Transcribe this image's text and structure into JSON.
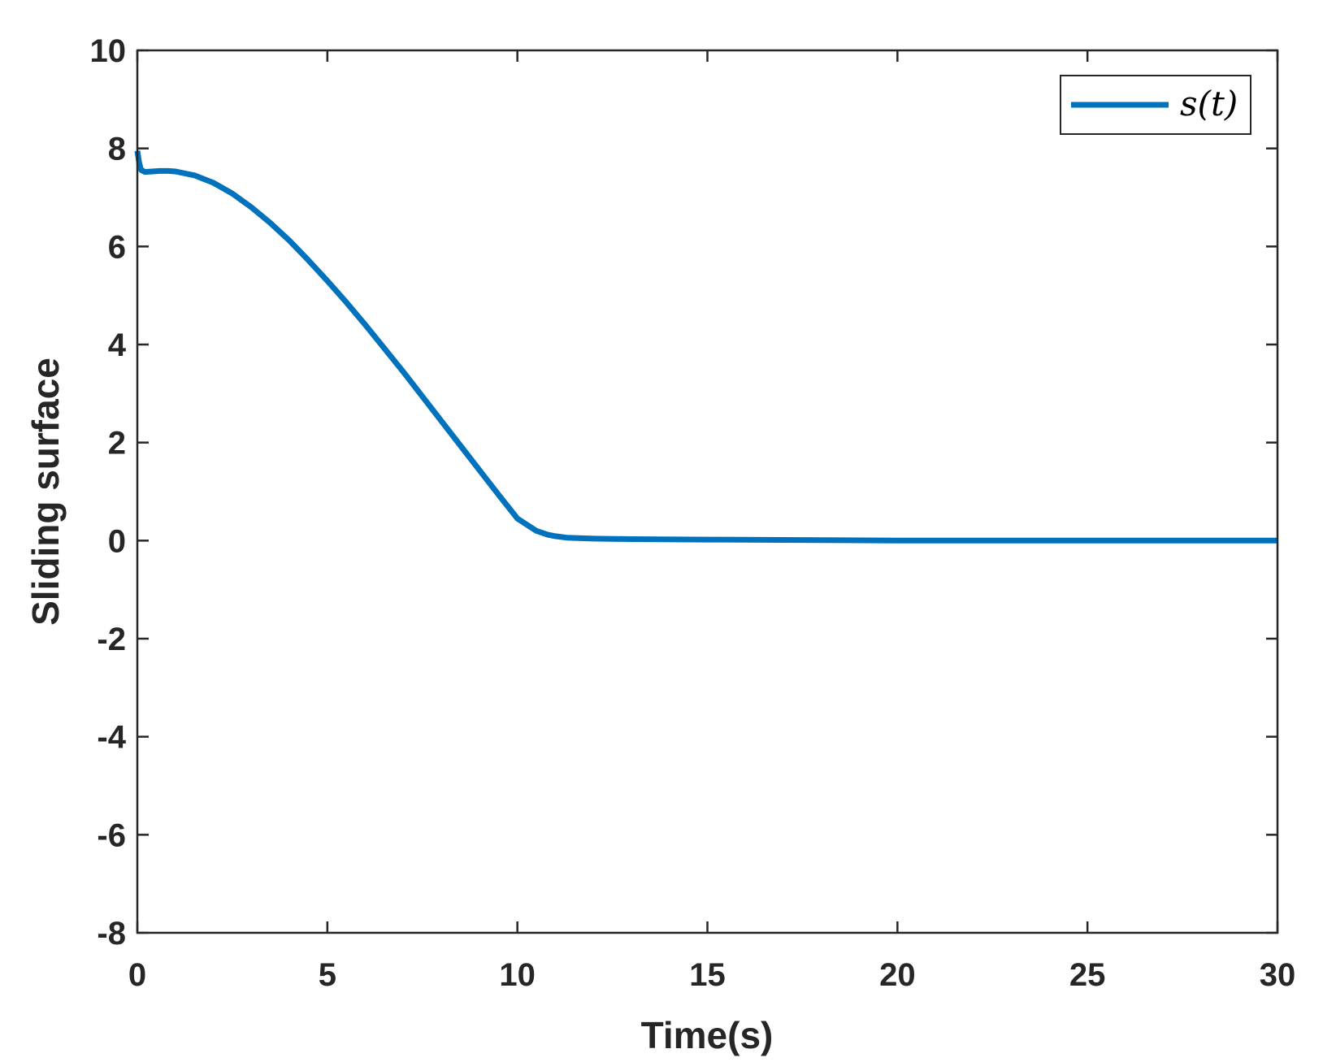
{
  "chart_data": {
    "type": "line",
    "title": "",
    "xlabel": "Time(s)",
    "ylabel": "Sliding surface",
    "xlim": [
      0,
      30
    ],
    "ylim": [
      -8,
      10
    ],
    "xticks": [
      0,
      5,
      10,
      15,
      20,
      25,
      30
    ],
    "xtick_labels": [
      "0",
      "5",
      "10",
      "15",
      "20",
      "25",
      "30"
    ],
    "yticks": [
      -8,
      -6,
      -4,
      -2,
      0,
      2,
      4,
      6,
      8,
      10
    ],
    "ytick_labels": [
      "-8",
      "-6",
      "-4",
      "-2",
      "0",
      "2",
      "4",
      "6",
      "8",
      "10"
    ],
    "grid": false,
    "legend_position": "top-right",
    "series": [
      {
        "name": "s(t)",
        "color": "#0072BD",
        "x": [
          0,
          0.05,
          0.1,
          0.2,
          0.4,
          0.6,
          0.8,
          1.0,
          1.5,
          2.0,
          2.5,
          3.0,
          3.5,
          4.0,
          4.5,
          5.0,
          5.5,
          6.0,
          6.5,
          7.0,
          7.5,
          8.0,
          8.5,
          9.0,
          9.5,
          10.0,
          10.5,
          10.8,
          11.0,
          11.3,
          11.6,
          12.0,
          13.0,
          15.0,
          18.0,
          20.0,
          25.0,
          30.0
        ],
        "y": [
          7.95,
          7.7,
          7.56,
          7.52,
          7.53,
          7.54,
          7.54,
          7.53,
          7.45,
          7.3,
          7.08,
          6.8,
          6.48,
          6.12,
          5.72,
          5.3,
          4.86,
          4.4,
          3.92,
          3.44,
          2.94,
          2.44,
          1.94,
          1.44,
          0.94,
          0.45,
          0.2,
          0.12,
          0.09,
          0.06,
          0.05,
          0.04,
          0.03,
          0.02,
          0.01,
          0.0,
          0.0,
          0.0
        ]
      }
    ]
  }
}
